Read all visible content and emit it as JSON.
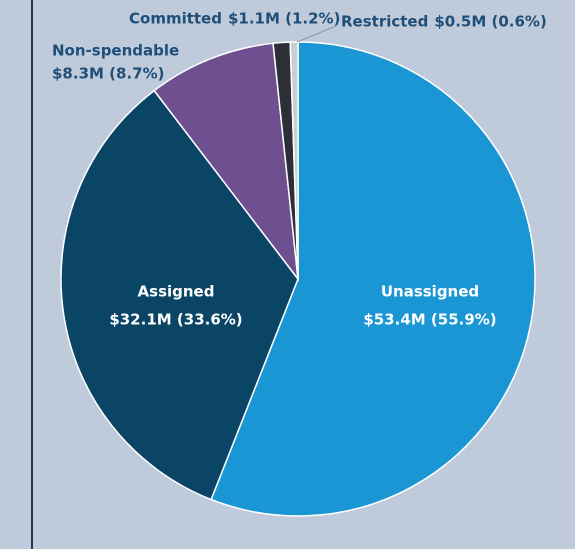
{
  "chart_data": {
    "type": "pie",
    "categories": [
      "Unassigned",
      "Assigned",
      "Non-spendable",
      "Committed",
      "Restricted"
    ],
    "values": [
      53.4,
      32.1,
      8.3,
      1.1,
      0.5
    ],
    "value_labels": [
      "$53.4M (55.9%)",
      "$32.1M (33.6%)",
      "$8.3M (8.7%)",
      "$1.1M (1.2%)",
      "$0.5M (0.6%)"
    ],
    "colors": [
      "#1a96d4",
      "#0b4566",
      "#6e5090",
      "#2d2f36",
      "#c9ced6"
    ]
  }
}
